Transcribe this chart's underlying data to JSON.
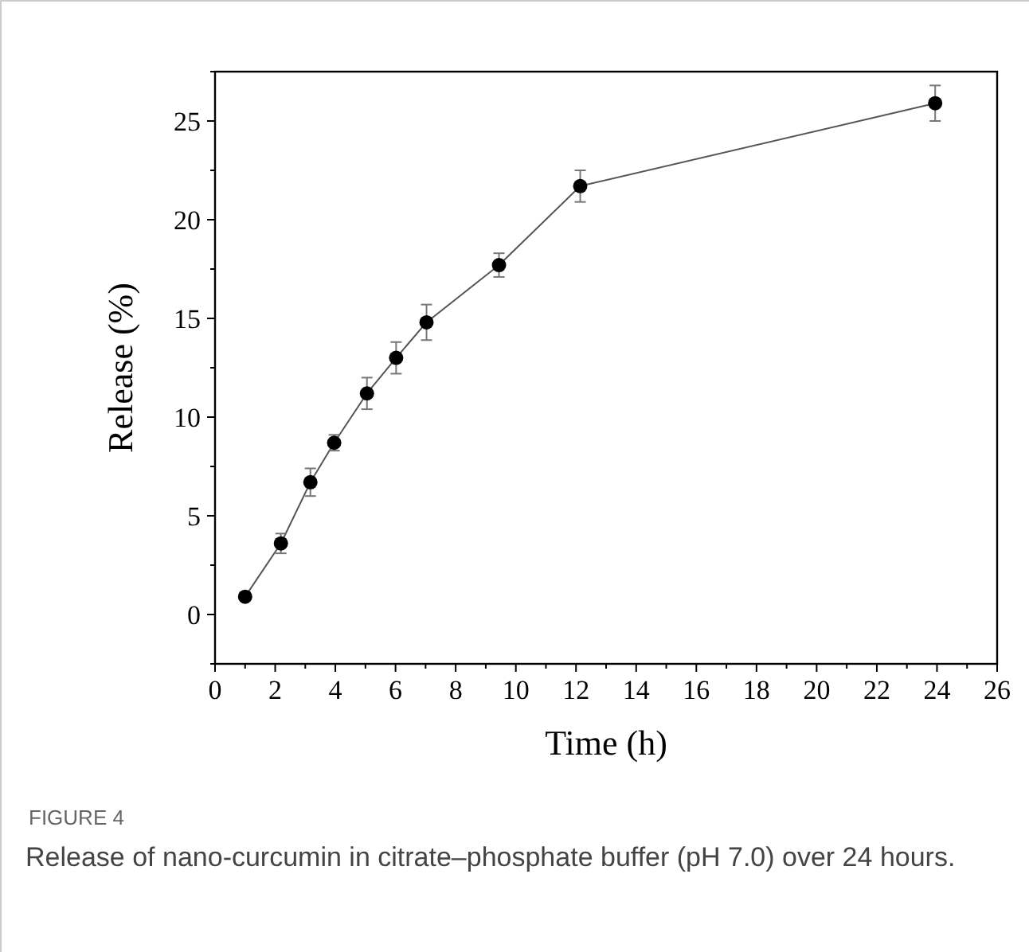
{
  "chart_data": {
    "type": "line",
    "xlabel": "Time (h)",
    "ylabel": "Release (%)",
    "x": [
      1,
      2.19,
      3.17,
      3.96,
      5.05,
      6.02,
      7.03,
      9.44,
      12.14,
      23.94
    ],
    "series": [
      {
        "color": "#000000",
        "values": [
          0.9,
          3.6,
          6.7,
          8.7,
          11.2,
          13,
          14.8,
          17.7,
          21.7,
          25.9
        ],
        "errors": [
          null,
          0.5,
          0.7,
          0.4,
          0.8,
          0.8,
          0.9,
          0.6,
          0.8,
          0.9
        ]
      }
    ],
    "marker": "circle",
    "line_style": "solid",
    "grid": false,
    "xlim": [
      0,
      26
    ],
    "ylim": [
      -2.5,
      27.5
    ],
    "xticks": [
      0,
      {
        "value": 1,
        "label": null
      },
      2,
      {
        "value": 3,
        "label": null
      },
      4,
      {
        "value": 5,
        "label": null
      },
      6,
      {
        "value": 7,
        "label": null
      },
      8,
      {
        "value": 9,
        "label": null
      },
      10,
      {
        "value": 11,
        "label": null
      },
      12,
      {
        "value": 13,
        "label": null
      },
      14,
      {
        "value": 15,
        "label": null
      },
      16,
      {
        "value": 17,
        "label": null
      },
      18,
      {
        "value": 19,
        "label": null
      },
      20,
      {
        "value": 21,
        "label": null
      },
      22,
      {
        "value": 23,
        "label": null
      },
      24,
      {
        "value": 25,
        "label": null
      },
      26
    ],
    "yticks": [
      {
        "value": -2.5,
        "label": null
      },
      0,
      {
        "value": 2.5,
        "label": null
      },
      5,
      {
        "value": 7.5,
        "label": null
      },
      10,
      {
        "value": 12.5,
        "label": null
      },
      15,
      {
        "value": 17.5,
        "label": null
      },
      20,
      {
        "value": 22.5,
        "label": null
      },
      25,
      {
        "value": 27.5,
        "label": null
      }
    ],
    "annotations": [
      "FIGURE 4",
      "Release of nano-curcumin in citrate–phosphate buffer (pH 7.0) over 24 hours."
    ]
  }
}
